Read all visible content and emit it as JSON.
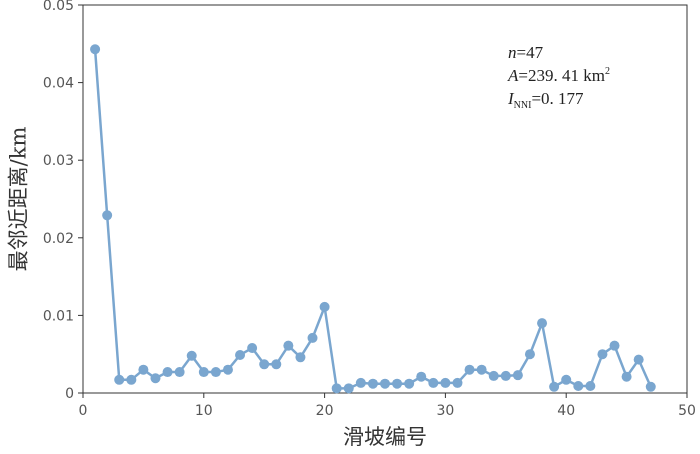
{
  "chart_data": {
    "type": "line",
    "x_label": "滑坡编号",
    "y_label": "最邻近距离/km",
    "x": [
      1,
      2,
      3,
      4,
      5,
      6,
      7,
      8,
      9,
      10,
      11,
      12,
      13,
      14,
      15,
      16,
      17,
      18,
      19,
      20,
      21,
      22,
      23,
      24,
      25,
      26,
      27,
      28,
      29,
      30,
      31,
      32,
      33,
      34,
      35,
      36,
      37,
      38,
      39,
      40,
      41,
      42,
      43,
      44,
      45,
      46,
      47
    ],
    "series": [
      {
        "color": "#7aa6cf",
        "values": [
          0.0443,
          0.0229,
          0.0017,
          0.0017,
          0.003,
          0.0019,
          0.0027,
          0.0027,
          0.0048,
          0.0027,
          0.0027,
          0.003,
          0.0049,
          0.0058,
          0.0037,
          0.0037,
          0.0061,
          0.0046,
          0.0071,
          0.0111,
          0.0006,
          0.0006,
          0.0013,
          0.0012,
          0.0012,
          0.0012,
          0.0012,
          0.0021,
          0.0013,
          0.0013,
          0.0013,
          0.003,
          0.003,
          0.0022,
          0.0022,
          0.0023,
          0.005,
          0.009,
          0.0008,
          0.0017,
          0.0009,
          0.0009,
          0.005,
          0.0061,
          0.0021,
          0.0043,
          0.0008
        ]
      }
    ],
    "xlim": [
      0,
      50
    ],
    "xticks": [
      0,
      10,
      20,
      30,
      40,
      50
    ],
    "ylim": [
      0,
      0.05
    ],
    "yticks": [
      0,
      0.01,
      0.02,
      0.03,
      0.04,
      0.05
    ],
    "annotations": [
      {
        "symbol": "n",
        "text": "=47"
      },
      {
        "symbol": "A",
        "text": "=239. 41 km",
        "superscript": "2"
      },
      {
        "symbol": "I",
        "subscript": "NNI",
        "text": "=0. 177"
      }
    ]
  }
}
